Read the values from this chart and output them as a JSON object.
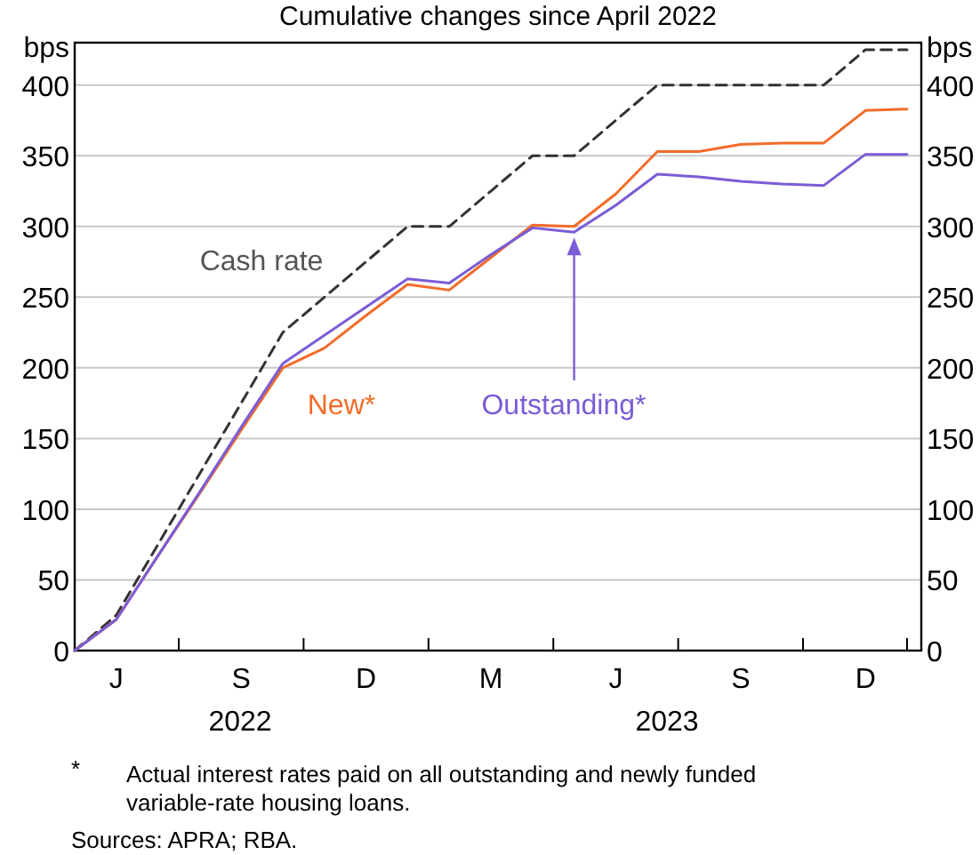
{
  "chart_data": {
    "type": "line",
    "title": "Cumulative changes since April 2022",
    "ylabel": "bps",
    "y2label": "bps",
    "categories": [
      null,
      "J",
      null,
      null,
      "S",
      null,
      null,
      "D",
      null,
      null,
      "M",
      null,
      null,
      "J",
      null,
      null,
      "S",
      null,
      null,
      "D",
      null
    ],
    "series": [
      {
        "name": "Cash rate",
        "color": "#333333",
        "line_style": "dashed",
        "values": [
          0,
          25,
          75,
          125,
          175,
          225,
          250,
          275,
          300,
          300,
          325,
          350,
          350,
          375,
          400,
          400,
          400,
          400,
          400,
          425,
          425
        ]
      },
      {
        "name": "New*",
        "color": "#f26c2a",
        "line_style": "solid",
        "values": [
          0,
          22,
          67,
          111,
          156,
          200,
          214,
          237,
          259,
          255,
          278,
          301,
          300,
          323,
          353,
          353,
          358,
          359,
          359,
          382,
          383
        ]
      },
      {
        "name": "Outstanding*",
        "color": "#7b5cd6",
        "line_style": "solid",
        "values": [
          0,
          22,
          67,
          112,
          158,
          203,
          223,
          243,
          263,
          260,
          280,
          299,
          296,
          315,
          337,
          335,
          332,
          330,
          329,
          351,
          351
        ]
      }
    ],
    "ylim": [
      0,
      430
    ],
    "yticks": [
      0,
      50,
      100,
      150,
      200,
      250,
      300,
      350,
      400
    ],
    "y2lim": [
      0,
      430
    ],
    "y2ticks": [
      0,
      50,
      100,
      150,
      200,
      250,
      300,
      350,
      400
    ],
    "grid": "y",
    "marker": "none",
    "annotations": [
      "2022",
      "2023",
      "*",
      "Actual interest rates paid on all outstanding and newly funded variable-rate housing loans.",
      "Sources: APRA; RBA."
    ]
  }
}
